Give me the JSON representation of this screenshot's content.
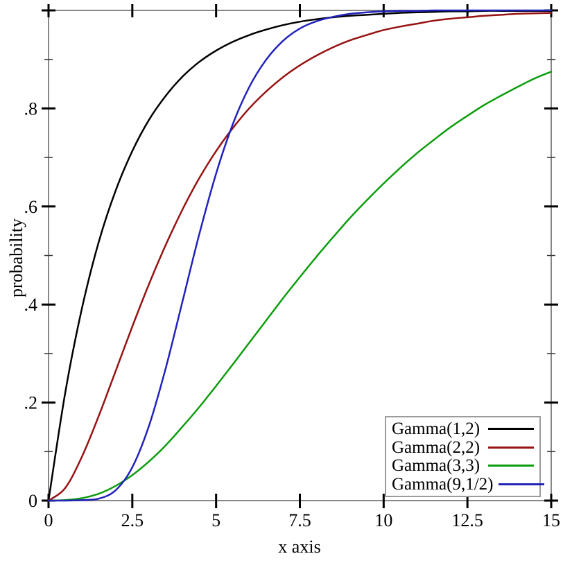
{
  "chart_data": {
    "type": "line",
    "title": "",
    "xlabel": "x axis",
    "ylabel": "probability",
    "xlim": [
      0,
      15
    ],
    "ylim": [
      0,
      1
    ],
    "grid": false,
    "legend_position": "bottom-right",
    "x_ticks": [
      {
        "v": 0,
        "label": "0"
      },
      {
        "v": 2.5,
        "label": "2.5"
      },
      {
        "v": 5,
        "label": "5"
      },
      {
        "v": 7.5,
        "label": "7.5"
      },
      {
        "v": 10,
        "label": "10"
      },
      {
        "v": 12.5,
        "label": "12.5"
      },
      {
        "v": 15,
        "label": "15"
      }
    ],
    "y_ticks_major": [
      {
        "v": 0,
        "label": "0"
      },
      {
        "v": 0.2,
        "label": ".2"
      },
      {
        "v": 0.4,
        "label": ".4"
      },
      {
        "v": 0.6,
        "label": ".6"
      },
      {
        "v": 0.8,
        "label": ".8"
      },
      {
        "v": 1,
        "label": ""
      }
    ],
    "y_ticks_minor": [
      0.1,
      0.3,
      0.5,
      0.7,
      0.9
    ],
    "x": [
      0,
      0.5,
      1,
      1.5,
      2,
      2.5,
      3,
      3.5,
      4,
      4.5,
      5,
      5.5,
      6,
      6.5,
      7,
      7.5,
      8,
      8.5,
      9,
      9.5,
      10,
      10.5,
      11,
      11.5,
      12,
      12.5,
      13,
      13.5,
      14,
      14.5,
      15
    ],
    "series": [
      {
        "label": "Gamma(1,2)",
        "color": "#000000",
        "y": [
          0,
          0.221,
          0.393,
          0.528,
          0.632,
          0.713,
          0.777,
          0.826,
          0.865,
          0.895,
          0.918,
          0.936,
          0.95,
          0.961,
          0.97,
          0.977,
          0.982,
          0.986,
          0.989,
          0.991,
          0.993,
          0.995,
          0.996,
          0.997,
          0.998,
          0.998,
          0.999,
          0.999,
          0.999,
          0.999,
          0.999
        ]
      },
      {
        "label": "Gamma(2,2)",
        "color": "#971212",
        "y": [
          0,
          0.026,
          0.09,
          0.173,
          0.264,
          0.355,
          0.442,
          0.522,
          0.594,
          0.658,
          0.713,
          0.76,
          0.801,
          0.835,
          0.864,
          0.888,
          0.908,
          0.925,
          0.939,
          0.95,
          0.96,
          0.967,
          0.973,
          0.979,
          0.983,
          0.986,
          0.989,
          0.991,
          0.993,
          0.994,
          0.995
        ]
      },
      {
        "label": "Gamma(3,3)",
        "color": "#0c9d0c",
        "y": [
          0,
          0.001,
          0.005,
          0.014,
          0.03,
          0.052,
          0.08,
          0.113,
          0.151,
          0.191,
          0.234,
          0.278,
          0.323,
          0.368,
          0.413,
          0.456,
          0.498,
          0.538,
          0.577,
          0.613,
          0.647,
          0.679,
          0.709,
          0.736,
          0.762,
          0.785,
          0.807,
          0.826,
          0.844,
          0.861,
          0.875
        ]
      },
      {
        "label": "Gamma(9,1/2)",
        "color": "#2222bb",
        "y": [
          0,
          0.0,
          0.001,
          0.004,
          0.021,
          0.068,
          0.153,
          0.271,
          0.407,
          0.544,
          0.667,
          0.768,
          0.845,
          0.9,
          0.938,
          0.963,
          0.978,
          0.987,
          0.993,
          0.996,
          0.998,
          0.999,
          0.999,
          1.0,
          1.0,
          1.0,
          1.0,
          1.0,
          1.0,
          1.0,
          1.0
        ]
      }
    ]
  },
  "colors": {
    "background": "#ffffff",
    "axis": "#878787",
    "tick_major": "#000000",
    "tick_minor": "#3a3a3a",
    "text": "#000000",
    "legend_border": "#9b9b9b"
  }
}
